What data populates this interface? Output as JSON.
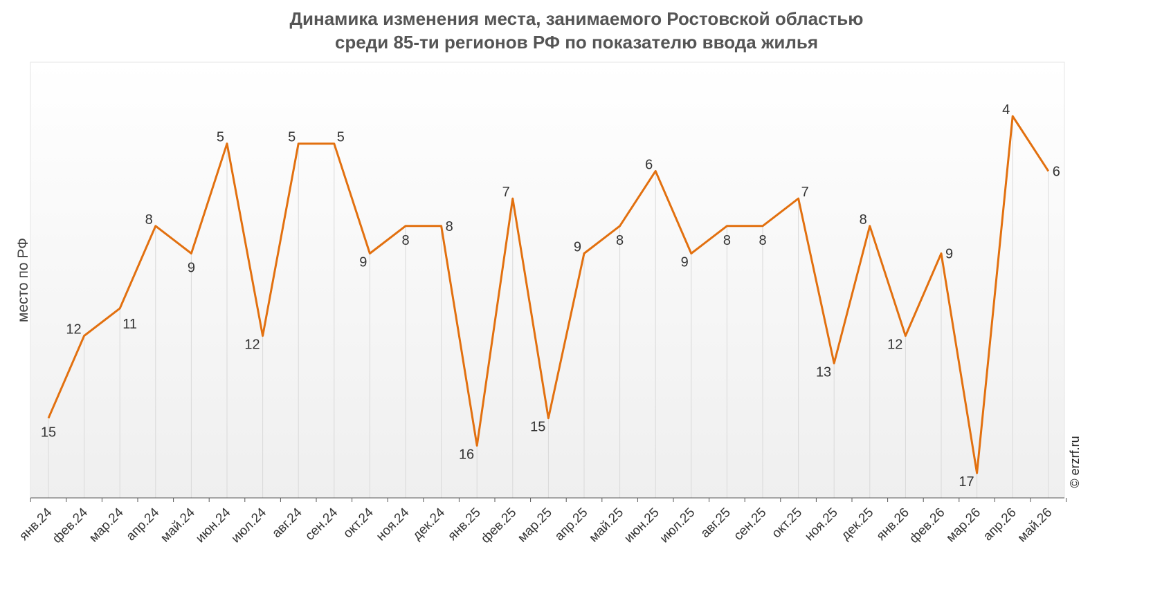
{
  "chart_data": {
    "type": "line",
    "title": [
      "Динамика изменения места, занимаемого Ростовской областью",
      "среди 85-ти регионов РФ по показателю ввода жилья"
    ],
    "xlabel": "",
    "ylabel": "место по РФ",
    "y_reversed": true,
    "ylim": [
      19,
      2
    ],
    "grid": "vertical drop lines",
    "categories": [
      "янв.24",
      "фев.24",
      "мар.24",
      "апр.24",
      "май.24",
      "июн.24",
      "июл.24",
      "авг.24",
      "сен.24",
      "окт.24",
      "ноя.24",
      "дек.24",
      "янв.25",
      "фев.25",
      "мар.25",
      "апр.25",
      "май.25",
      "июн.25",
      "июл.25",
      "авг.25",
      "сен.25",
      "окт.25",
      "ноя.25",
      "дек.25",
      "янв.26",
      "фев.26",
      "мар.26",
      "апр.26",
      "май.26"
    ],
    "series": [
      {
        "name": "",
        "color": "#E2700F",
        "values": [
          15,
          12,
          11,
          8,
          9,
          5,
          12,
          5,
          5,
          9,
          8,
          8,
          16,
          7,
          15,
          9,
          8,
          6,
          9,
          8,
          8,
          7,
          13,
          8,
          12,
          9,
          17,
          4,
          6
        ],
        "label_placement": [
          "below",
          "above-left",
          "below-right",
          "above-left",
          "below",
          "above-left",
          "below-left",
          "above-left",
          "above-right",
          "below-left",
          "below",
          "right",
          "below-left",
          "above-left",
          "below-left",
          "above-left",
          "below",
          "above-left",
          "below-left",
          "below",
          "below",
          "above-right",
          "below-left",
          "above-left",
          "below-left",
          "right",
          "below-left",
          "above-left",
          "right"
        ]
      }
    ]
  },
  "watermark": "© erzrf.ru",
  "colors": {
    "line": "#E2700F",
    "plot_bg_top": "#FFFFFF",
    "plot_bg_bottom": "#EFEFEF",
    "drop_line": "#D9D9D9",
    "axis": "#555555"
  }
}
